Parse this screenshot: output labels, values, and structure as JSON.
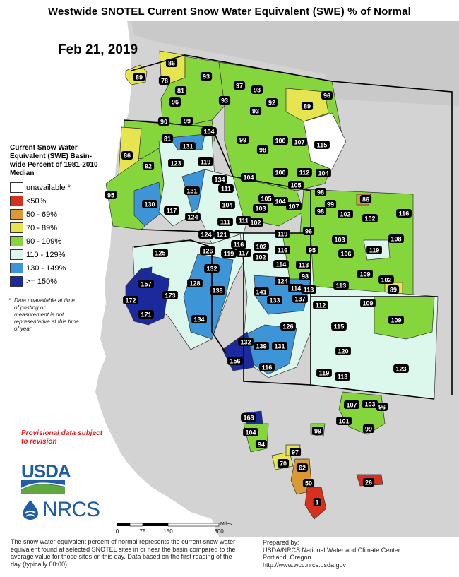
{
  "title": "Westwide SNOTEL Current Snow Water Equivalent (SWE) % of Normal",
  "date": "Feb 21, 2019",
  "legend": {
    "title": "Current Snow Water Equivalent (SWE) Basin-wide Percent of 1981-2010 Median",
    "items": [
      {
        "label": "unavailable *",
        "color": "#ffffff"
      },
      {
        "label": "<50%",
        "color": "#d7301f"
      },
      {
        "label": "50 - 69%",
        "color": "#d99a34"
      },
      {
        "label": "70 - 89%",
        "color": "#e6e44f"
      },
      {
        "label": "90 - 109%",
        "color": "#85d63c"
      },
      {
        "label": "110 - 129%",
        "color": "#dcf7ec"
      },
      {
        "label": "130 - 149%",
        "color": "#3d94d6"
      },
      {
        "label": ">= 150%",
        "color": "#1a2a9c"
      }
    ],
    "note": "Data unavailable at time of posting or measurement is not representative at this time of year"
  },
  "provisional": "Provisional data subject to revision",
  "logos": {
    "usda": "USDA",
    "nrcs": "NRCS"
  },
  "scale": {
    "ticks": [
      "0",
      "75",
      "150",
      "300"
    ],
    "unit": "Miles"
  },
  "footer_left": "The snow water equivalent percent of normal represents the current snow water equivalent found at selected SNOTEL sites in or near the basin compared to the average value for those sites on this day. Data based on the first reading of the day (typically 00:00).",
  "footer_right": {
    "line1": "Prepared by:",
    "line2": "USDA/NRCS National Water and Climate Center",
    "line3": "Portland, Oregon",
    "line4": "http://www.wcc.nrcs.usda.gov"
  },
  "basins": [
    {
      "label": "89"
    },
    {
      "label": "86"
    },
    {
      "label": "78"
    },
    {
      "label": "93"
    },
    {
      "label": "81"
    },
    {
      "label": "97"
    },
    {
      "label": "93"
    },
    {
      "label": "96"
    },
    {
      "label": "81"
    },
    {
      "label": "93"
    },
    {
      "label": "92"
    },
    {
      "label": "89"
    },
    {
      "label": "96"
    },
    {
      "label": "90"
    },
    {
      "label": "99"
    },
    {
      "label": "93"
    },
    {
      "label": "104"
    },
    {
      "label": "81"
    },
    {
      "label": "99"
    },
    {
      "label": "98"
    },
    {
      "label": "100"
    },
    {
      "label": "107"
    },
    {
      "label": "115"
    },
    {
      "label": "131"
    },
    {
      "label": "86"
    },
    {
      "label": "92"
    },
    {
      "label": "123"
    },
    {
      "label": "119"
    },
    {
      "label": "134"
    },
    {
      "label": "104"
    },
    {
      "label": "100"
    },
    {
      "label": "112"
    },
    {
      "label": "104"
    },
    {
      "label": "111"
    },
    {
      "label": "105"
    },
    {
      "label": "95"
    },
    {
      "label": "131"
    },
    {
      "label": "105"
    },
    {
      "label": "104"
    },
    {
      "label": "98"
    },
    {
      "label": "86"
    },
    {
      "label": "130"
    },
    {
      "label": "104"
    },
    {
      "label": "103"
    },
    {
      "label": "107"
    },
    {
      "label": "99"
    },
    {
      "label": "98"
    },
    {
      "label": "117"
    },
    {
      "label": "102"
    },
    {
      "label": "116"
    },
    {
      "label": "124"
    },
    {
      "label": "111"
    },
    {
      "label": "111"
    },
    {
      "label": "102"
    },
    {
      "label": "102"
    },
    {
      "label": "124"
    },
    {
      "label": "121"
    },
    {
      "label": "119"
    },
    {
      "label": "96"
    },
    {
      "label": "103"
    },
    {
      "label": "108"
    },
    {
      "label": "125"
    },
    {
      "label": "116"
    },
    {
      "label": "102"
    },
    {
      "label": "126"
    },
    {
      "label": "119"
    },
    {
      "label": "117"
    },
    {
      "label": "102"
    },
    {
      "label": "116"
    },
    {
      "label": "95"
    },
    {
      "label": "106"
    },
    {
      "label": "119"
    },
    {
      "label": "114"
    },
    {
      "label": "113"
    },
    {
      "label": "98"
    },
    {
      "label": "132"
    },
    {
      "label": "157"
    },
    {
      "label": "109"
    },
    {
      "label": "102"
    },
    {
      "label": "128"
    },
    {
      "label": "173"
    },
    {
      "label": "124"
    },
    {
      "label": "114"
    },
    {
      "label": "113"
    },
    {
      "label": "89"
    },
    {
      "label": "138"
    },
    {
      "label": "141"
    },
    {
      "label": "113"
    },
    {
      "label": "172"
    },
    {
      "label": "133"
    },
    {
      "label": "137"
    },
    {
      "label": "112"
    },
    {
      "label": "109"
    },
    {
      "label": "171"
    },
    {
      "label": "134"
    },
    {
      "label": "109"
    },
    {
      "label": "115"
    },
    {
      "label": "126"
    },
    {
      "label": "132"
    },
    {
      "label": "139"
    },
    {
      "label": "131"
    },
    {
      "label": "120"
    },
    {
      "label": "156"
    },
    {
      "label": "116"
    },
    {
      "label": "123"
    },
    {
      "label": "119"
    },
    {
      "label": "113"
    },
    {
      "label": "107"
    },
    {
      "label": "103"
    },
    {
      "label": "96"
    },
    {
      "label": "168"
    },
    {
      "label": "101"
    },
    {
      "label": "104"
    },
    {
      "label": "99"
    },
    {
      "label": "99"
    },
    {
      "label": "94"
    },
    {
      "label": "97"
    },
    {
      "label": "70"
    },
    {
      "label": "62"
    },
    {
      "label": "50"
    },
    {
      "label": "26"
    },
    {
      "label": "1"
    }
  ]
}
